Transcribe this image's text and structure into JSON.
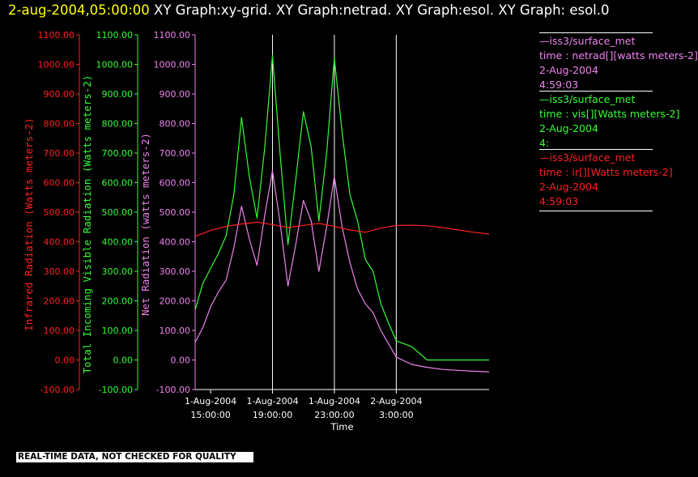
{
  "header": {
    "timestamp": "2-aug-2004,05:00:00",
    "rest": " XY Graph:xy-grid.  XY Graph:netrad.  XY Graph:esol.  XY Graph: esol.0"
  },
  "legend": [
    {
      "line1": "—iss3/surface_met",
      "line2": "time : netrad[][watts meters-2]",
      "line3": "2-Aug-2004",
      "line4": "4:59:03",
      "color": "#ee82ee"
    },
    {
      "line1": "—iss3/surface_met",
      "line2": "time : vis[][Watts meters-2]",
      "line3": "2-Aug-2004",
      "line4": "4:",
      "color": "#33ff33"
    },
    {
      "line1": "—iss3/surface_met",
      "line2": "time : ir[][Watts meters-2]",
      "line3": "2-Aug-2004",
      "line4": "4:59:03",
      "color": "#ff2020"
    }
  ],
  "banner": "REAL-TIME DATA, NOT CHECKED FOR QUALITY",
  "chart_data": {
    "type": "line",
    "xlabel": "Time",
    "xlim_hours": [
      14.0,
      33.0
    ],
    "x_ticks": [
      {
        "hour": 15,
        "date": "1-Aug-2004",
        "time": "15:00:00"
      },
      {
        "hour": 19,
        "date": "1-Aug-2004",
        "time": "19:00:00"
      },
      {
        "hour": 23,
        "date": "1-Aug-2004",
        "time": "23:00:00"
      },
      {
        "hour": 27,
        "date": "2-Aug-2004",
        "time": "3:00:00"
      }
    ],
    "grid_x_hours": [
      19,
      23,
      27
    ],
    "ylim": [
      -100,
      1100
    ],
    "y_ticks": [
      "1100.00",
      "1000.00",
      "900.00",
      "800.00",
      "700.00",
      "600.00",
      "500.00",
      "400.00",
      "300.00",
      "200.00",
      "100.00",
      "0.00",
      "-100.00"
    ],
    "axes": [
      {
        "label": "Infrared Radiation (Watts meters-2)",
        "color": "#ff2020"
      },
      {
        "label": "Total Incoming Visible Radiation (Watts meters-2)",
        "color": "#33ff33"
      },
      {
        "label": "Net Radiation (watts meters-2)",
        "color": "#ee82ee"
      }
    ],
    "series": [
      {
        "name": "vis",
        "color": "#33ff33",
        "x": [
          14.0,
          14.5,
          15.0,
          15.5,
          16.0,
          16.5,
          17.0,
          17.5,
          18.0,
          18.5,
          19.0,
          19.5,
          20.0,
          20.5,
          21.0,
          21.5,
          22.0,
          22.5,
          23.0,
          23.5,
          24.0,
          24.5,
          25.0,
          25.5,
          26.0,
          26.5,
          27.0,
          28.0,
          29.0,
          30.0,
          31.0,
          32.0,
          33.0
        ],
        "y": [
          170,
          260,
          310,
          360,
          420,
          560,
          820,
          620,
          480,
          720,
          1030,
          690,
          390,
          610,
          840,
          720,
          470,
          700,
          1020,
          770,
          560,
          470,
          340,
          300,
          190,
          125,
          65,
          45,
          0,
          0,
          0,
          0,
          0
        ]
      },
      {
        "name": "netrad",
        "color": "#ee82ee",
        "x": [
          14.0,
          14.5,
          15.0,
          15.5,
          16.0,
          16.5,
          17.0,
          17.5,
          18.0,
          18.5,
          19.0,
          19.5,
          20.0,
          20.5,
          21.0,
          21.5,
          22.0,
          22.5,
          23.0,
          23.5,
          24.0,
          24.5,
          25.0,
          25.5,
          26.0,
          26.5,
          27.0,
          28.0,
          29.0,
          30.0,
          31.0,
          32.0,
          33.0
        ],
        "y": [
          60,
          110,
          180,
          230,
          270,
          380,
          520,
          410,
          320,
          490,
          640,
          460,
          250,
          390,
          540,
          470,
          300,
          450,
          620,
          450,
          330,
          240,
          190,
          160,
          100,
          55,
          10,
          -15,
          -25,
          -32,
          -35,
          -38,
          -40
        ]
      },
      {
        "name": "ir",
        "color": "#ff2020",
        "x": [
          14.0,
          15.0,
          16.0,
          17.0,
          18.0,
          19.0,
          20.0,
          21.0,
          22.0,
          23.0,
          24.0,
          25.0,
          26.0,
          27.0,
          28.0,
          29.0,
          30.0,
          31.0,
          32.0,
          33.0
        ],
        "y": [
          418,
          438,
          452,
          460,
          466,
          458,
          448,
          455,
          462,
          452,
          440,
          432,
          446,
          455,
          456,
          454,
          448,
          440,
          432,
          426
        ]
      }
    ]
  }
}
